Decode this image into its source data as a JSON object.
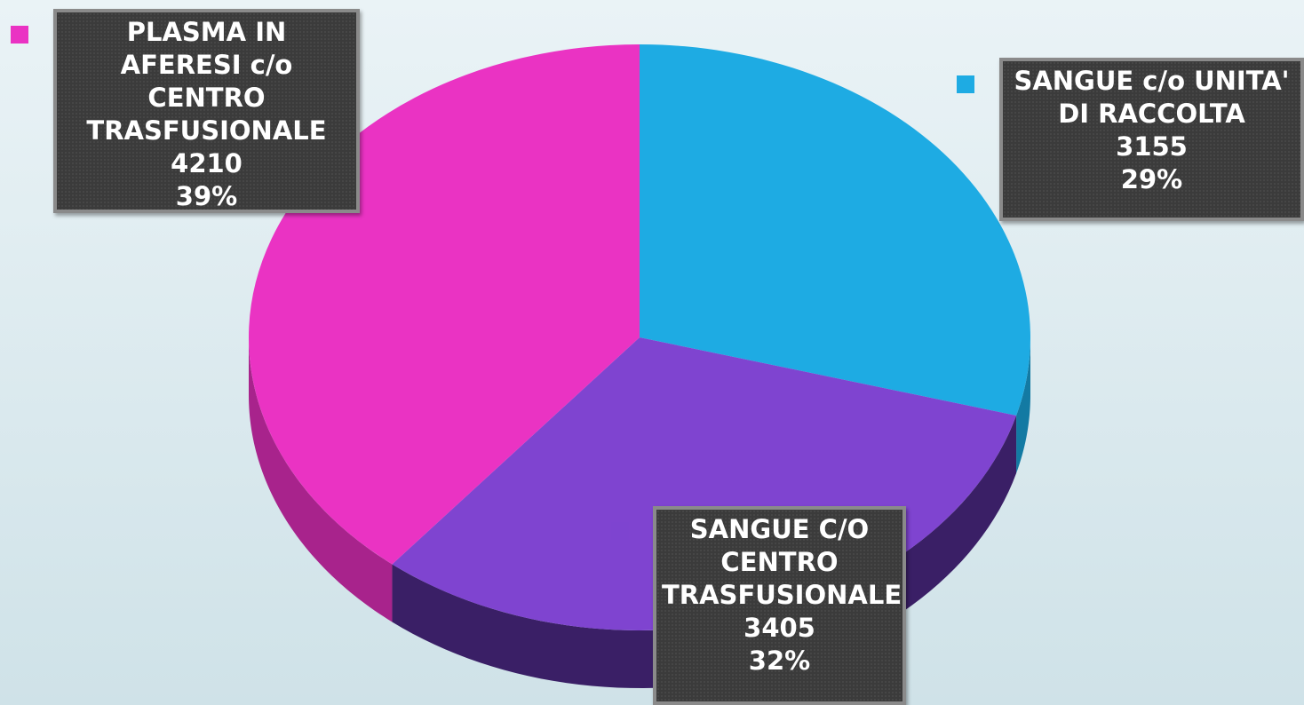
{
  "chart_data": {
    "type": "pie",
    "categories": [
      "SANGUE c/o UNITA' DI RACCOLTA",
      "SANGUE C/O CENTRO TRASFUSIONALE",
      "PLASMA IN AFERESI c/o CENTRO TRASFUSIONALE"
    ],
    "values": [
      3155,
      3405,
      4210
    ],
    "percentages": [
      29,
      32,
      39
    ],
    "percentage_labels": [
      "29%",
      "32%",
      "39%"
    ],
    "colors": [
      "#1eabe3",
      "#7f44d0",
      "#ea33c3"
    ],
    "side_colors": [
      "#137aa3",
      "#3a1f66",
      "#a8238c"
    ]
  }
}
